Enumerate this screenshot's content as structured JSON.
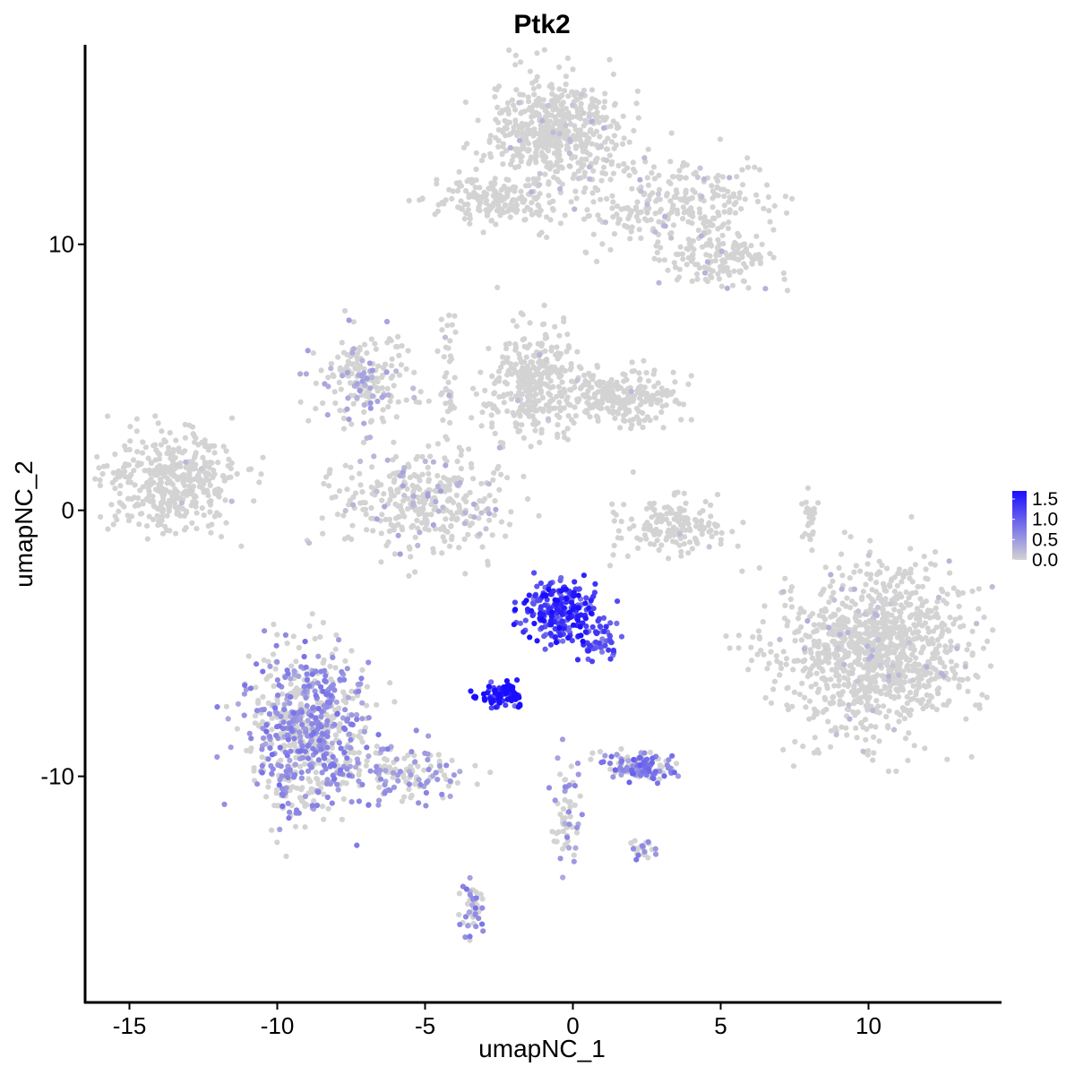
{
  "chart_data": {
    "type": "scatter",
    "title": "Ptk2",
    "xlabel": "umapNC_1",
    "ylabel": "umapNC_2",
    "xlim": [
      -16.5,
      14.5
    ],
    "ylim": [
      -18.5,
      17.5
    ],
    "x_ticks": [
      -15,
      -10,
      -5,
      0,
      5,
      10
    ],
    "x_tick_labels": [
      "-15",
      "-10",
      "-5",
      "0",
      "5",
      "10"
    ],
    "y_ticks": [
      10,
      0,
      -10
    ],
    "y_tick_labels": [
      "10",
      "0",
      "-10"
    ],
    "grid": false,
    "point_color_low": "#d3d3d3",
    "point_color_high": "#1a0dff",
    "legend": {
      "position": "right",
      "breaks": [
        1.5,
        1.0,
        0.5,
        0.0
      ],
      "labels": [
        "1.5",
        "1.0",
        "0.5",
        "0.0"
      ],
      "min": 0.0,
      "max": 1.7
    },
    "clusters": [
      {
        "name": "top-right",
        "x": -0.5,
        "y": 14.3,
        "sx": 1.1,
        "sy": 1.0,
        "n": 520,
        "expr": 0.04
      },
      {
        "name": "top-right-arm",
        "x": 3.3,
        "y": 11.5,
        "sx": 1.8,
        "sy": 1.0,
        "n": 280,
        "expr": 0.05
      },
      {
        "name": "top-arm",
        "x": -2.6,
        "y": 11.7,
        "sx": 1.1,
        "sy": 0.45,
        "n": 180,
        "expr": 0.01
      },
      {
        "name": "far-right-tail",
        "x": 5.0,
        "y": 9.6,
        "sx": 0.9,
        "sy": 0.6,
        "n": 150,
        "expr": 0.06
      },
      {
        "name": "left-cluster",
        "x": -13.5,
        "y": 1.1,
        "sx": 1.1,
        "sy": 0.85,
        "n": 420,
        "expr": 0.01
      },
      {
        "name": "mid-upper",
        "x": -1.4,
        "y": 4.8,
        "sx": 0.8,
        "sy": 1.1,
        "n": 320,
        "expr": 0.01
      },
      {
        "name": "mid-upper-arm",
        "x": 1.5,
        "y": 4.2,
        "sx": 1.2,
        "sy": 0.45,
        "n": 240,
        "expr": 0.01
      },
      {
        "name": "c-shape",
        "x": -5.0,
        "y": 0.2,
        "sx": 1.5,
        "sy": 0.9,
        "n": 340,
        "expr": 0.14
      },
      {
        "name": "upper-left-stem",
        "x": -7.0,
        "y": 4.8,
        "sx": 0.8,
        "sy": 0.9,
        "n": 200,
        "expr": 0.22
      },
      {
        "name": "right-small",
        "x": 3.4,
        "y": -0.6,
        "sx": 0.9,
        "sy": 0.6,
        "n": 160,
        "expr": 0.02
      },
      {
        "name": "big-right",
        "x": 10.3,
        "y": -5.2,
        "sx": 1.6,
        "sy": 1.5,
        "n": 1100,
        "expr": 0.05
      },
      {
        "name": "bottom-left",
        "x": -9.0,
        "y": -8.3,
        "sx": 1.0,
        "sy": 1.5,
        "n": 720,
        "expr": 0.45
      },
      {
        "name": "bottom-left-arm",
        "x": -5.6,
        "y": -9.8,
        "sx": 1.1,
        "sy": 0.5,
        "n": 140,
        "expr": 0.35
      },
      {
        "name": "center-dark",
        "x": -0.4,
        "y": -3.8,
        "sx": 0.6,
        "sy": 0.55,
        "n": 230,
        "expr": 1.1
      },
      {
        "name": "center-dark-tail",
        "x": 0.8,
        "y": -5.0,
        "sx": 0.35,
        "sy": 0.4,
        "n": 50,
        "expr": 0.9
      },
      {
        "name": "small-dark",
        "x": -2.4,
        "y": -6.9,
        "sx": 0.35,
        "sy": 0.22,
        "n": 90,
        "expr": 1.3
      },
      {
        "name": "small-right",
        "x": 2.3,
        "y": -9.6,
        "sx": 0.6,
        "sy": 0.25,
        "n": 140,
        "expr": 0.55
      },
      {
        "name": "bottom-stem",
        "x": -0.2,
        "y": -11.5,
        "sx": 0.25,
        "sy": 1.0,
        "n": 60,
        "expr": 0.35
      },
      {
        "name": "bottom-small",
        "x": -3.4,
        "y": -15.0,
        "sx": 0.2,
        "sy": 0.5,
        "n": 45,
        "expr": 0.45
      },
      {
        "name": "lower-right-small",
        "x": 2.4,
        "y": -12.7,
        "sx": 0.25,
        "sy": 0.2,
        "n": 25,
        "expr": 0.4
      },
      {
        "name": "mid-right-thin",
        "x": 8.0,
        "y": -0.3,
        "sx": 0.15,
        "sy": 0.6,
        "n": 25,
        "expr": 0.0
      },
      {
        "name": "stem-up",
        "x": -4.2,
        "y": 5.2,
        "sx": 0.15,
        "sy": 1.5,
        "n": 40,
        "expr": 0.05
      }
    ]
  }
}
